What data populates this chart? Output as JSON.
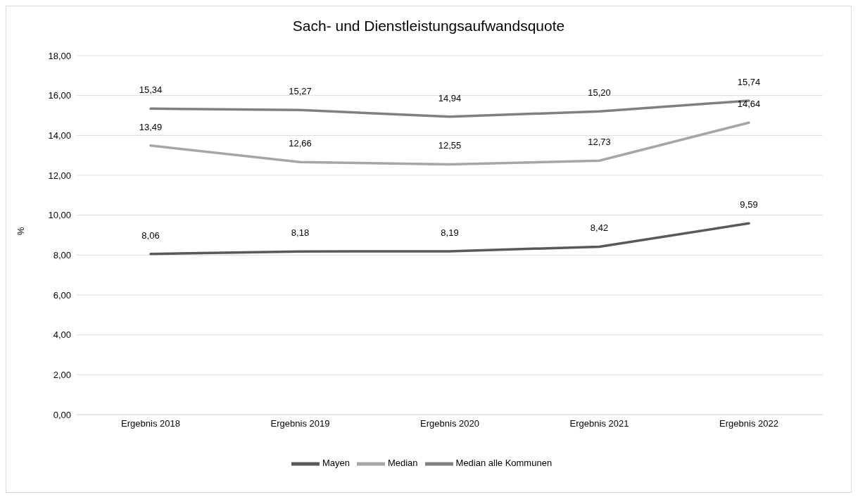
{
  "chart_data": {
    "type": "line",
    "title": "Sach- und Dienstleistungsaufwandsquote",
    "ylabel": "%",
    "categories": [
      "Ergebnis 2018",
      "Ergebnis 2019",
      "Ergebnis 2020",
      "Ergebnis 2021",
      "Ergebnis 2022"
    ],
    "series": [
      {
        "name": "Mayen",
        "color": "#595959",
        "values": [
          8.06,
          8.18,
          8.19,
          8.42,
          9.59
        ],
        "value_labels": [
          "8,06",
          "8,18",
          "8,19",
          "8,42",
          "9,59"
        ]
      },
      {
        "name": "Median",
        "color": "#a6a6a6",
        "values": [
          13.49,
          12.66,
          12.55,
          12.73,
          14.64
        ],
        "value_labels": [
          "13,49",
          "12,66",
          "12,55",
          "12,73",
          "14,64"
        ]
      },
      {
        "name": "Median alle Kommunen",
        "color": "#808080",
        "values": [
          15.34,
          15.27,
          14.94,
          15.2,
          15.74
        ],
        "value_labels": [
          "15,34",
          "15,27",
          "14,94",
          "15,20",
          "15,74"
        ]
      }
    ],
    "ylim": [
      0,
      18
    ],
    "yticks": [
      {
        "value": 0,
        "label": "0,00"
      },
      {
        "value": 2,
        "label": "2,00"
      },
      {
        "value": 4,
        "label": "4,00"
      },
      {
        "value": 6,
        "label": "6,00"
      },
      {
        "value": 8,
        "label": "8,00"
      },
      {
        "value": 10,
        "label": "10,00"
      },
      {
        "value": 12,
        "label": "12,00"
      },
      {
        "value": 14,
        "label": "14,00"
      },
      {
        "value": 16,
        "label": "16,00"
      },
      {
        "value": 18,
        "label": "18,00"
      }
    ],
    "grid": "y",
    "legend": "bottom",
    "marker": "none",
    "line_style": "solid"
  }
}
